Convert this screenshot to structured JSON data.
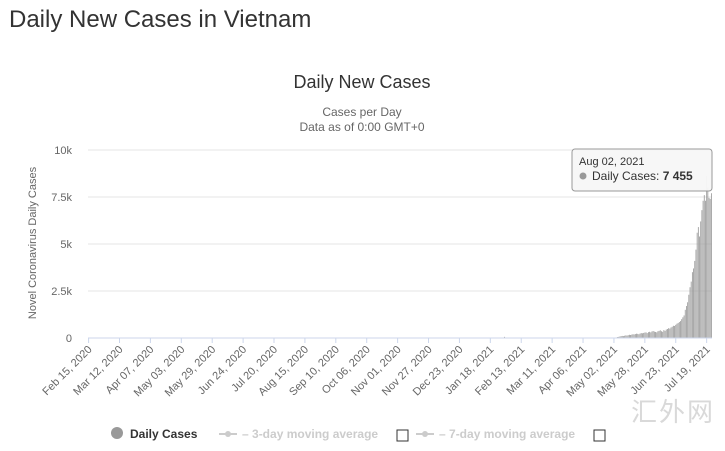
{
  "page": {
    "title": "Daily New Cases in Vietnam",
    "watermark": "汇外网"
  },
  "chart_data": {
    "type": "bar",
    "title": "Daily New Cases",
    "subtitle_lines": [
      "Cases per Day",
      "Data as of 0:00 GMT+0"
    ],
    "ylabel": "Novel Coronavirus Daily Cases",
    "xlabel": "",
    "ylim": [
      0,
      10000
    ],
    "yticks": [
      0,
      2500,
      5000,
      7500,
      10000
    ],
    "ytick_labels": [
      "0",
      "2.5k",
      "5k",
      "7.5k",
      "10k"
    ],
    "xtick_labels": [
      "Feb 15, 2020",
      "Mar 12, 2020",
      "Apr 07, 2020",
      "May 03, 2020",
      "May 29, 2020",
      "Jun 24, 2020",
      "Jul 20, 2020",
      "Aug 15, 2020",
      "Sep 10, 2020",
      "Oct 06, 2020",
      "Nov 01, 2020",
      "Nov 27, 2020",
      "Dec 23, 2020",
      "Jan 18, 2021",
      "Feb 13, 2021",
      "Mar 11, 2021",
      "Apr 06, 2021",
      "May 02, 2021",
      "May 28, 2021",
      "Jun 23, 2021",
      "Jul 19, 2021"
    ],
    "grid": true,
    "bar_color": "#999999",
    "series": [
      {
        "name": "Daily Cases",
        "values": [
          0,
          0,
          0,
          0,
          0,
          0,
          0,
          0,
          0,
          0,
          0,
          0,
          0,
          0,
          0,
          0,
          0,
          0,
          0,
          0,
          0,
          0,
          0,
          0,
          0,
          0,
          0,
          0,
          0,
          0,
          0,
          0,
          0,
          0,
          0,
          0,
          0,
          0,
          0,
          0,
          0,
          0,
          0,
          0,
          0,
          0,
          0,
          0,
          0,
          0,
          0,
          0,
          0,
          0,
          0,
          0,
          0,
          0,
          0,
          0,
          0,
          0,
          0,
          0,
          0,
          0,
          0,
          0,
          0,
          0,
          0,
          0,
          0,
          0,
          0,
          0,
          0,
          0,
          0,
          0,
          0,
          0,
          0,
          0,
          0,
          0,
          0,
          0,
          0,
          0,
          0,
          0,
          0,
          0,
          0,
          0,
          0,
          0,
          0,
          0,
          0,
          0,
          0,
          0,
          0,
          0,
          0,
          0,
          0,
          0,
          0,
          0,
          0,
          0,
          0,
          0,
          0,
          0,
          0,
          0,
          0,
          0,
          0,
          0,
          0,
          0,
          0,
          0,
          0,
          0,
          0,
          0,
          0,
          0,
          0,
          0,
          0,
          0,
          0,
          0,
          0,
          0,
          0,
          0,
          0,
          0,
          0,
          0,
          0,
          0,
          0,
          0,
          0,
          0,
          0,
          0,
          0,
          0,
          0,
          0,
          0,
          0,
          0,
          0,
          0,
          0,
          0,
          0,
          0,
          0,
          0,
          0,
          0,
          0,
          0,
          0,
          0,
          0,
          0,
          0,
          0,
          0,
          0,
          0,
          0,
          0,
          0,
          0,
          0,
          0,
          0,
          0,
          0,
          0,
          0,
          0,
          0,
          0,
          0,
          0,
          0,
          0,
          0,
          0,
          0,
          0,
          0,
          0,
          0,
          0,
          0,
          0,
          0,
          0,
          0,
          0,
          0,
          0,
          0,
          0,
          0,
          0,
          0,
          0,
          0,
          0,
          0,
          0,
          0,
          0,
          0,
          0,
          0,
          0,
          0,
          0,
          0,
          0,
          0,
          0,
          0,
          0,
          0,
          0,
          0,
          0,
          0,
          0,
          0,
          0,
          0,
          0,
          0,
          0,
          0,
          0,
          0,
          0,
          0,
          0,
          0,
          0,
          0,
          0,
          0,
          0,
          0,
          0,
          0,
          0,
          0,
          0,
          0,
          0,
          0,
          0,
          0,
          0,
          0,
          0,
          0,
          0,
          0,
          0,
          0,
          0,
          0,
          0,
          0,
          0,
          0,
          0,
          0,
          0,
          0,
          0,
          0,
          0,
          0,
          0,
          0,
          0,
          0,
          0,
          0,
          0,
          0,
          0,
          0,
          0,
          0,
          0,
          0,
          0,
          0,
          0,
          0,
          0,
          0,
          0,
          0,
          0,
          0,
          0,
          0,
          0,
          0,
          0,
          0,
          0,
          0,
          0,
          0,
          0,
          0,
          0,
          0,
          0,
          0,
          0,
          0,
          0,
          0,
          0,
          0,
          0,
          0,
          0,
          0,
          0,
          60,
          20,
          0,
          0,
          0,
          0,
          0,
          0,
          0,
          0,
          0,
          0,
          0,
          0,
          0,
          0,
          0,
          0,
          0,
          0,
          0,
          0,
          0,
          0,
          0,
          0,
          0,
          0,
          0,
          0,
          0,
          0,
          0,
          0,
          0,
          0,
          0,
          0,
          0,
          0,
          0,
          0,
          0,
          0,
          0,
          0,
          0,
          0,
          0,
          0,
          0,
          0,
          0,
          0,
          0,
          0,
          0,
          0,
          0,
          0,
          0,
          0,
          0,
          0,
          0,
          0,
          0,
          0,
          0,
          0,
          0,
          0,
          0,
          0,
          0,
          0,
          0,
          0,
          0,
          0,
          0,
          0,
          0,
          0,
          0,
          0,
          0,
          0,
          0,
          0,
          0,
          0,
          0,
          20,
          30,
          50,
          60,
          80,
          100,
          110,
          100,
          120,
          140,
          130,
          150,
          170,
          160,
          180,
          200,
          190,
          210,
          230,
          220,
          200,
          240,
          260,
          250,
          270,
          290,
          300,
          260,
          310,
          330,
          300,
          350,
          370,
          340,
          320,
          300,
          360,
          380,
          410,
          360,
          330,
          420,
          380,
          450,
          480,
          520,
          500,
          560,
          600,
          650,
          640,
          700,
          760,
          800,
          850,
          900,
          1000,
          1100,
          1200,
          1500,
          1700,
          1900,
          2300,
          2700,
          3000,
          3500,
          3700,
          4100,
          4700,
          5600,
          5900,
          5400,
          6200,
          6800,
          7300,
          7600,
          7300,
          8600,
          8000,
          7455,
          7400,
          7700
        ]
      }
    ],
    "tooltip": {
      "date": "Aug 02, 2021",
      "series": "Daily Cases",
      "value": "7 455"
    },
    "legend": {
      "position": "bottom",
      "items": [
        {
          "label": "Daily Cases",
          "active": true,
          "color": "#999999"
        },
        {
          "label": "3-day moving average",
          "active": false,
          "color": "#cccccc"
        },
        {
          "label": "7-day moving average",
          "active": false,
          "color": "#cccccc"
        }
      ]
    }
  }
}
